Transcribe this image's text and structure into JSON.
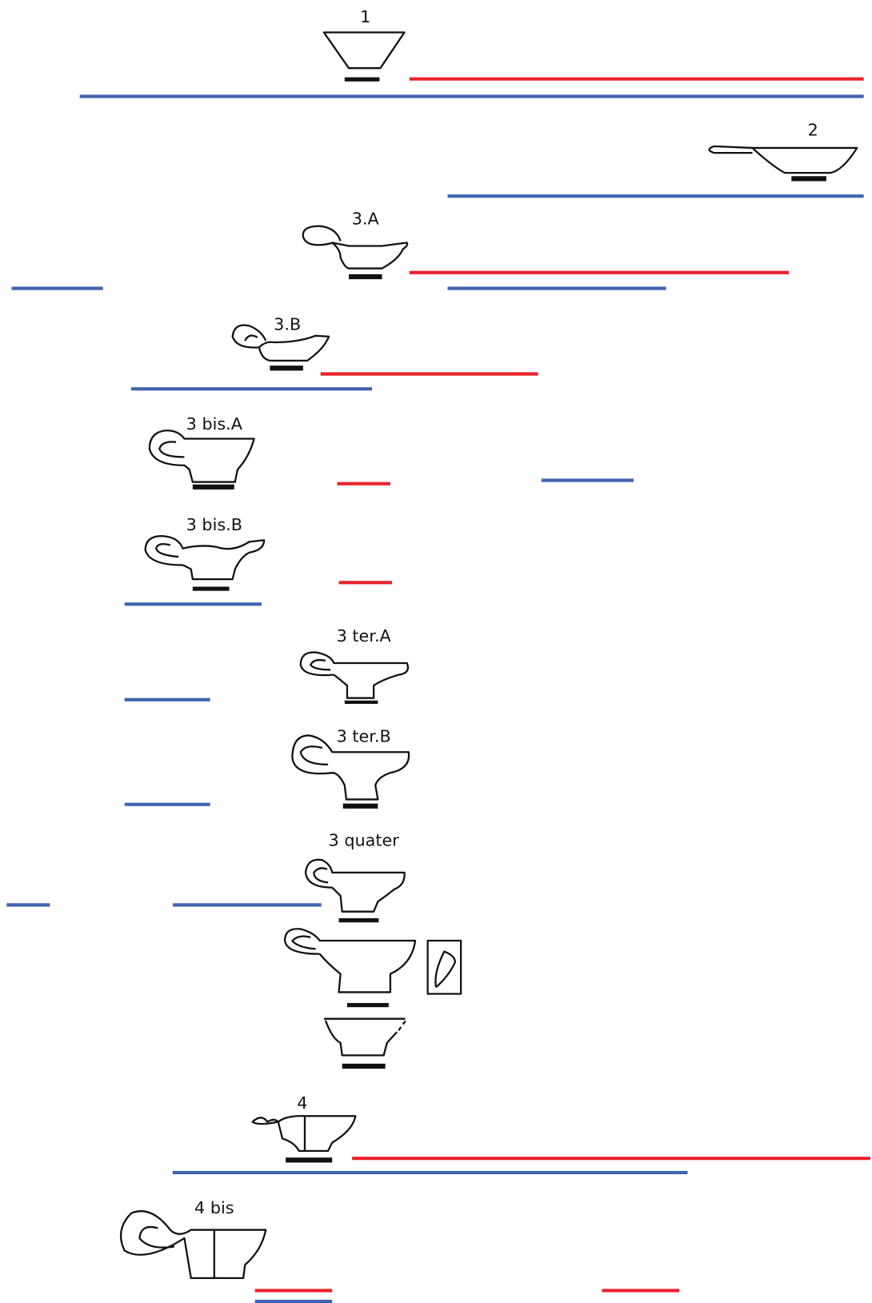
{
  "types": [
    {
      "label": "1"
    },
    {
      "label": "2"
    },
    {
      "label": "3.A"
    },
    {
      "label": "3.B"
    },
    {
      "label": "3 bis.A"
    },
    {
      "label": "3 bis.B"
    },
    {
      "label": "3 ter.A"
    },
    {
      "label": "3 ter.B"
    },
    {
      "label": "3 quater"
    },
    {
      "label": "4"
    },
    {
      "label": "4 bis"
    }
  ]
}
